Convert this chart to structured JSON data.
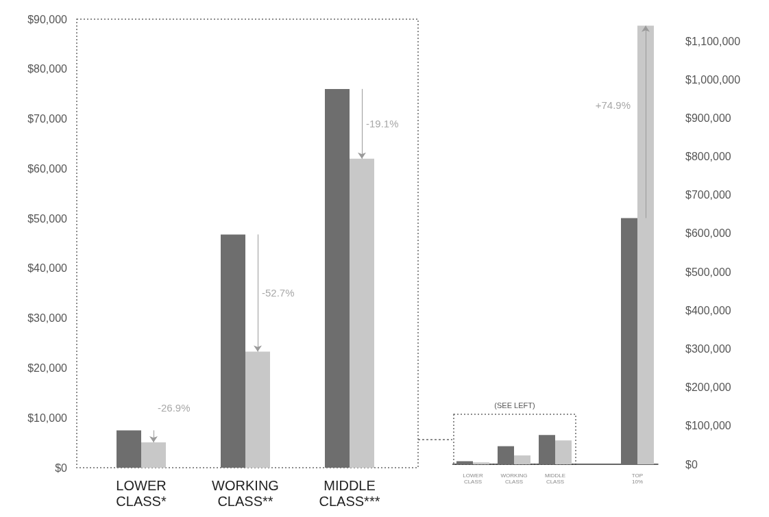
{
  "chart_data": [
    {
      "type": "bar",
      "categories": [
        "LOWER CLASS*",
        "WORKING CLASS**",
        "MIDDLE CLASS***"
      ],
      "series": [
        {
          "color": "#6e6e6e",
          "values": [
            7500,
            46800,
            76000
          ]
        },
        {
          "color": "#c8c8c8",
          "values": [
            5100,
            23300,
            62000
          ]
        }
      ],
      "ylim": [
        0,
        90000
      ],
      "yticks": [
        {
          "value": 0,
          "label": "$0"
        },
        {
          "value": 10000,
          "label": "$10,000"
        },
        {
          "value": 20000,
          "label": "$20,000"
        },
        {
          "value": 30000,
          "label": "$30,000"
        },
        {
          "value": 40000,
          "label": "$40,000"
        },
        {
          "value": 50000,
          "label": "$50,000"
        },
        {
          "value": 60000,
          "label": "$60,000"
        },
        {
          "value": 70000,
          "label": "$70,000"
        },
        {
          "value": 80000,
          "label": "$80,000"
        },
        {
          "value": 90000,
          "label": "$90,000"
        }
      ],
      "annotations": [
        "-26.9%",
        "-52.7%",
        "-19.1%"
      ],
      "grid": false
    },
    {
      "type": "bar",
      "categories": [
        "LOWER CLASS",
        "WORKING CLASS",
        "MIDDLE CLASS",
        null,
        "TOP 10%"
      ],
      "series": [
        {
          "color": "#6e6e6e",
          "values": [
            8000,
            47000,
            76000,
            null,
            640000
          ]
        },
        {
          "color": "#c8c8c8",
          "values": [
            5000,
            23000,
            62000,
            null,
            1140000
          ]
        }
      ],
      "ylim": [
        0,
        1150000
      ],
      "yticks": [
        {
          "value": 0,
          "label": "$0"
        },
        {
          "value": 100000,
          "label": "$100,000"
        },
        {
          "value": 200000,
          "label": "$200,000"
        },
        {
          "value": 300000,
          "label": "$300,000"
        },
        {
          "value": 400000,
          "label": "$400,000"
        },
        {
          "value": 500000,
          "label": "$500,000"
        },
        {
          "value": 600000,
          "label": "$600,000"
        },
        {
          "value": 700000,
          "label": "$700,000"
        },
        {
          "value": 800000,
          "label": "$800,000"
        },
        {
          "value": 900000,
          "label": "$900,000"
        },
        {
          "value": 1000000,
          "label": "$1,000,000"
        },
        {
          "value": 1100000,
          "label": "$1,100,000"
        }
      ],
      "annotations": [
        "(SEE LEFT)",
        "+74.9%"
      ],
      "grid": false
    }
  ]
}
